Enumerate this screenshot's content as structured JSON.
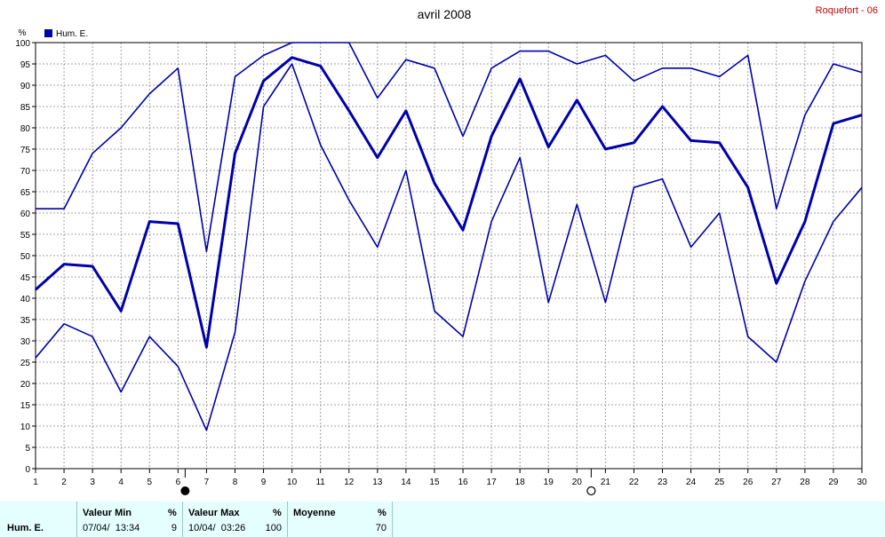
{
  "chart_data": {
    "type": "line",
    "title": "avril 2008",
    "station": "Roquefort - 06",
    "ylabel": "%",
    "legend": [
      "Hum. E."
    ],
    "legend_position": "top-left",
    "ylim": [
      0,
      100
    ],
    "yticks": [
      "0",
      "5",
      "10",
      "15",
      "20",
      "25",
      "30",
      "35",
      "40",
      "45",
      "50",
      "55",
      "60",
      "65",
      "70",
      "75",
      "80",
      "85",
      "90",
      "95",
      "100"
    ],
    "x": [
      "1",
      "2",
      "3",
      "4",
      "5",
      "6",
      "7",
      "8",
      "9",
      "10",
      "11",
      "12",
      "13",
      "14",
      "15",
      "16",
      "17",
      "18",
      "19",
      "20",
      "21",
      "22",
      "23",
      "24",
      "25",
      "26",
      "27",
      "28",
      "29",
      "30"
    ],
    "grid": true,
    "series": [
      {
        "role": "max",
        "values": [
          61,
          61,
          74,
          80,
          88,
          94,
          51,
          92,
          97,
          100,
          100,
          100,
          87,
          96,
          94,
          78,
          94,
          98,
          98,
          95,
          97,
          91,
          94,
          94,
          92,
          97,
          61,
          83,
          95,
          93
        ]
      },
      {
        "role": "mean",
        "values": [
          42,
          48,
          47.5,
          37,
          58,
          57.5,
          28.5,
          74,
          91,
          96.5,
          94.5,
          84,
          73,
          84,
          67,
          56,
          78,
          91.5,
          75.5,
          86.5,
          75,
          76.5,
          85,
          77,
          76.5,
          66,
          43.5,
          58,
          81,
          83
        ]
      },
      {
        "role": "min",
        "values": [
          26,
          34,
          31,
          18,
          31,
          24,
          9,
          32,
          85,
          95,
          76,
          63,
          52,
          70,
          37,
          31,
          58,
          73,
          39,
          62,
          39,
          66,
          68,
          52,
          60,
          31,
          25,
          44,
          58,
          66
        ]
      }
    ],
    "moon_phases": [
      {
        "day": 6.25,
        "phase": "new"
      },
      {
        "day": 20.5,
        "phase": "full"
      }
    ],
    "colors": {
      "line": "#0000aa",
      "grid": "#a0a0a0",
      "title_right": "#cc0000"
    }
  },
  "summary": {
    "series_label": "Hum. E.",
    "min": {
      "header": "Valeur Min",
      "unit": "%",
      "datetime": "07/04/  13:34",
      "value": "9"
    },
    "max": {
      "header": "Valeur Max",
      "unit": "%",
      "datetime": "10/04/  03:26",
      "value": "100"
    },
    "mean": {
      "header": "Moyenne",
      "unit": "%",
      "value": "70"
    }
  }
}
